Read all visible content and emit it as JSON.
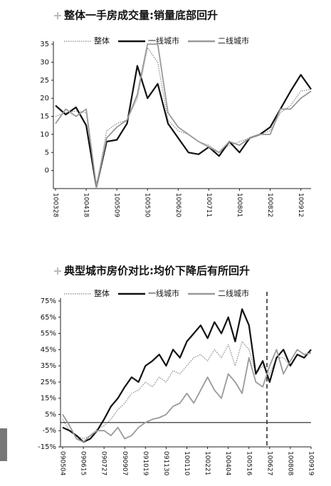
{
  "chart_data": [
    {
      "type": "line",
      "title": "整体一手房成交量:销量底部回升",
      "legend": "top",
      "categories": [
        "100328",
        null,
        null,
        "100418",
        null,
        null,
        "100509",
        null,
        null,
        "100530",
        null,
        null,
        "100620",
        null,
        null,
        "100711",
        null,
        null,
        "100801",
        null,
        null,
        "100822",
        null,
        null,
        "100912",
        null
      ],
      "series": [
        {
          "name": "整体",
          "color": "#888888",
          "line_style": "dotted",
          "values": [
            15,
            16,
            16.5,
            16,
            -4.5,
            11,
            13,
            14,
            20,
            34,
            30,
            14,
            11,
            10,
            8,
            7,
            5,
            7,
            8,
            9,
            10,
            11,
            16,
            18,
            22,
            22.5
          ]
        },
        {
          "name": "一线城市",
          "color": "#111111",
          "line_style": "solid",
          "values": [
            18,
            15.5,
            17.5,
            12.5,
            -4.5,
            8,
            8.5,
            13,
            29,
            20,
            24,
            13,
            9,
            5,
            4.5,
            6.5,
            4,
            8,
            5,
            9,
            10,
            12,
            17,
            22,
            26.5,
            22.5
          ]
        },
        {
          "name": "二线城市",
          "color": "#999999",
          "line_style": "solid",
          "values": [
            13,
            17,
            15,
            17,
            -4.5,
            9,
            12,
            14,
            21,
            35,
            35,
            16,
            12,
            10,
            8,
            6.5,
            5,
            8,
            7,
            9,
            10,
            10,
            17,
            17,
            20,
            22
          ]
        }
      ],
      "ylim": [
        -5,
        35
      ],
      "yticks": [
        0,
        5,
        10,
        15,
        20,
        25,
        30,
        35
      ]
    },
    {
      "type": "line",
      "title": "典型城市房价对比:均价下降后有所回升",
      "legend": "top",
      "categories": [
        "090504",
        null,
        null,
        "090615",
        null,
        null,
        "090727",
        null,
        null,
        "090907",
        null,
        null,
        "091019",
        null,
        null,
        "091130",
        null,
        null,
        "100110",
        null,
        null,
        "100221",
        null,
        null,
        "100404",
        null,
        null,
        "100516",
        null,
        null,
        "100627",
        null,
        null,
        "100808",
        null,
        null,
        "100919"
      ],
      "series": [
        {
          "name": "整体",
          "color": "#888888",
          "line_style": "dotted",
          "values": [
            2,
            -5,
            -8,
            -10,
            -8,
            -4,
            -2,
            2,
            8,
            12,
            18,
            20,
            25,
            22,
            28,
            25,
            32,
            30,
            35,
            40,
            42,
            38,
            45,
            40,
            48,
            35,
            50,
            45,
            30,
            35,
            30,
            40,
            40,
            35,
            42,
            40,
            44
          ]
        },
        {
          "name": "一线城市",
          "color": "#111111",
          "line_style": "solid",
          "values": [
            -3,
            -5,
            -8,
            -12,
            -10,
            -5,
            2,
            10,
            15,
            22,
            28,
            25,
            35,
            38,
            42,
            35,
            45,
            40,
            50,
            55,
            60,
            52,
            62,
            55,
            65,
            50,
            70,
            60,
            30,
            38,
            25,
            40,
            45,
            35,
            42,
            40,
            45
          ]
        },
        {
          "name": "二线城市",
          "color": "#999999",
          "line_style": "solid",
          "values": [
            5,
            -2,
            -10,
            -12,
            -8,
            -5,
            -5,
            -8,
            -3,
            -10,
            -8,
            -3,
            0,
            2,
            3,
            5,
            10,
            12,
            18,
            12,
            20,
            28,
            20,
            15,
            30,
            25,
            18,
            40,
            25,
            22,
            35,
            45,
            30,
            38,
            45,
            42,
            43
          ]
        }
      ],
      "ylim": [
        -15,
        75
      ],
      "yticks": [
        {
          "value": -15,
          "label": "-15%"
        },
        {
          "value": -5,
          "label": "-5%"
        },
        {
          "value": 5,
          "label": "5%"
        },
        {
          "value": 15,
          "label": "15%"
        },
        {
          "value": 25,
          "label": "25%"
        },
        {
          "value": 35,
          "label": "35%"
        },
        {
          "value": 45,
          "label": "45%"
        },
        {
          "value": 55,
          "label": "55%"
        },
        {
          "value": 65,
          "label": "65%"
        },
        {
          "value": 75,
          "label": "75%"
        }
      ],
      "zero_line": true
    }
  ]
}
